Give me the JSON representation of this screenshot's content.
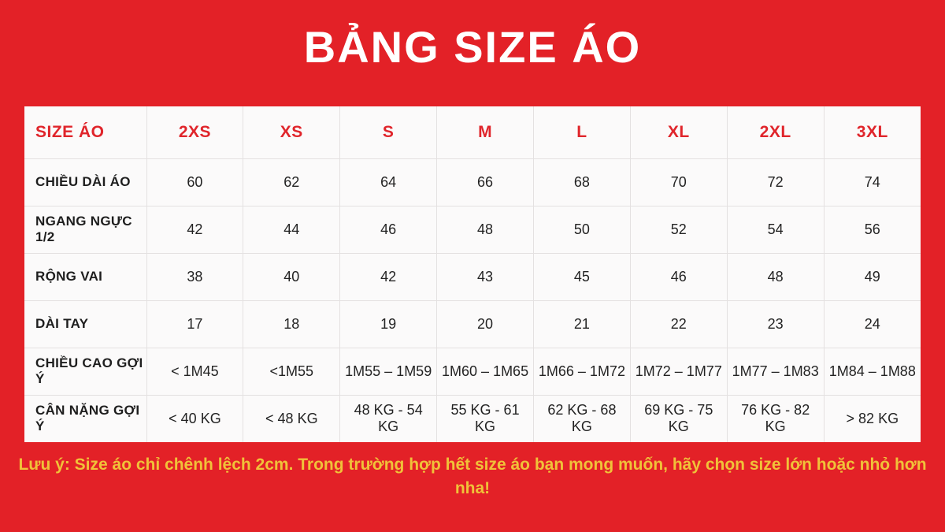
{
  "title": "BẢNG SIZE ÁO",
  "note": "Lưu ý: Size áo chỉ chênh lệch 2cm. Trong trường hợp hết size áo bạn mong muốn, hãy chọn size lớn hoặc nhỏ hơn nha!",
  "chart_data": {
    "type": "table",
    "title": "BẢNG SIZE ÁO",
    "corner_header": "SIZE ÁO",
    "columns": [
      "2XS",
      "XS",
      "S",
      "M",
      "L",
      "XL",
      "2XL",
      "3XL"
    ],
    "rows": [
      {
        "label": "CHIỀU DÀI ÁO",
        "values": [
          "60",
          "62",
          "64",
          "66",
          "68",
          "70",
          "72",
          "74"
        ]
      },
      {
        "label": "NGANG NGỰC 1/2",
        "values": [
          "42",
          "44",
          "46",
          "48",
          "50",
          "52",
          "54",
          "56"
        ]
      },
      {
        "label": "RỘNG VAI",
        "values": [
          "38",
          "40",
          "42",
          "43",
          "45",
          "46",
          "48",
          "49"
        ]
      },
      {
        "label": "DÀI TAY",
        "values": [
          "17",
          "18",
          "19",
          "20",
          "21",
          "22",
          "23",
          "24"
        ]
      },
      {
        "label": "CHIỀU CAO GỢI Ý",
        "values": [
          "< 1M45",
          "<1M55",
          "1M55 – 1M59",
          "1M60 – 1M65",
          "1M66 – 1M72",
          "1M72 – 1M77",
          "1M77 – 1M83",
          "1M84 – 1M88"
        ]
      },
      {
        "label": "CÂN NẶNG GỢI Ý",
        "values": [
          "< 40 KG",
          "< 48 KG",
          "48 KG - 54 KG",
          "55 KG - 61 KG",
          "62 KG - 68 KG",
          "69 KG - 75 KG",
          "76 KG - 82 KG",
          "> 82 KG"
        ]
      }
    ]
  },
  "colors": {
    "background": "#E32127",
    "table_background": "#FBFAFA",
    "header_text": "#E0252B",
    "body_text": "#232323",
    "border": "#E4E1E1",
    "title_text": "#FFFFFF",
    "note_text": "#F0C239"
  }
}
